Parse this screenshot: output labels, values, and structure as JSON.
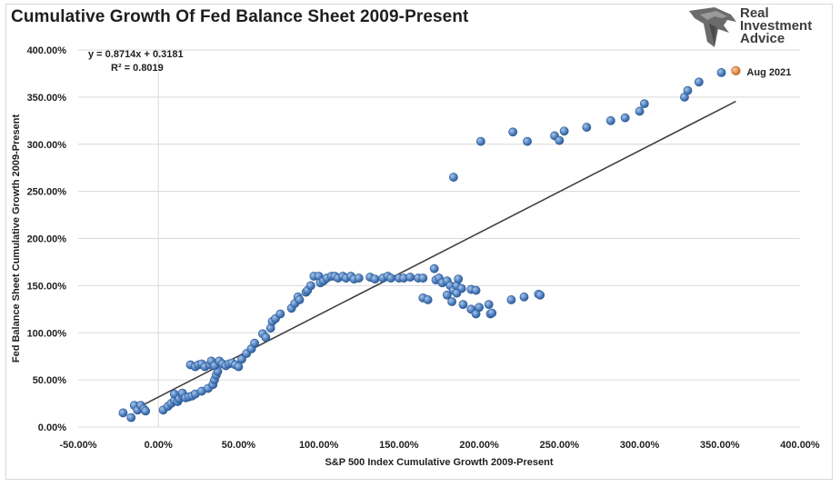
{
  "title": "Cumulative Growth Of Fed Balance Sheet 2009-Present",
  "logo": {
    "line1": "Real",
    "line2": "Investment",
    "line3": "Advice"
  },
  "chart_data": {
    "type": "scatter",
    "xlabel": "S&P 500 Index Cumulative Growth 2009-Present",
    "ylabel": "Fed Balance Sheet Cumulative Growth 2009-Present",
    "xlim": [
      -0.5,
      4.0
    ],
    "ylim": [
      0,
      4.0
    ],
    "x_ticks": [
      -0.5,
      0,
      0.5,
      1.0,
      1.5,
      2.0,
      2.5,
      3.0,
      3.5,
      4.0
    ],
    "x_tick_labels": [
      "-50.00%",
      "0.00%",
      "50.00%",
      "100.00%",
      "150.00%",
      "200.00%",
      "250.00%",
      "300.00%",
      "350.00%",
      "400.00%"
    ],
    "y_ticks": [
      0,
      0.5,
      1.0,
      1.5,
      2.0,
      2.5,
      3.0,
      3.5,
      4.0
    ],
    "y_tick_labels": [
      "0.00%",
      "50.00%",
      "100.00%",
      "150.00%",
      "200.00%",
      "250.00%",
      "300.00%",
      "350.00%",
      "400.00%"
    ],
    "grid": "horizontal",
    "colors": {
      "points": "#5b8ac7",
      "highlight": "#ed9a5b",
      "trendline": "#404040",
      "grid": "#d9d9d9"
    },
    "trendline": {
      "slope": 0.8714,
      "intercept": 0.3181,
      "x_range": [
        -0.14,
        3.6
      ],
      "equation_label": "y = 0.8714x + 0.3181",
      "r2_label": "R² = 0.8019"
    },
    "highlight": {
      "x": 3.6,
      "y": 3.78,
      "label": "Aug 2021"
    },
    "points": [
      [
        -0.22,
        0.15
      ],
      [
        -0.17,
        0.1
      ],
      [
        -0.15,
        0.23
      ],
      [
        -0.13,
        0.18
      ],
      [
        -0.11,
        0.23
      ],
      [
        -0.09,
        0.19
      ],
      [
        -0.08,
        0.17
      ],
      [
        0.03,
        0.18
      ],
      [
        0.06,
        0.22
      ],
      [
        0.08,
        0.25
      ],
      [
        0.1,
        0.28
      ],
      [
        0.1,
        0.35
      ],
      [
        0.12,
        0.27
      ],
      [
        0.13,
        0.3
      ],
      [
        0.15,
        0.33
      ],
      [
        0.15,
        0.36
      ],
      [
        0.17,
        0.31
      ],
      [
        0.19,
        0.32
      ],
      [
        0.21,
        0.33
      ],
      [
        0.23,
        0.35
      ],
      [
        0.27,
        0.38
      ],
      [
        0.31,
        0.41
      ],
      [
        0.34,
        0.45
      ],
      [
        0.35,
        0.5
      ],
      [
        0.36,
        0.55
      ],
      [
        0.37,
        0.59
      ],
      [
        0.2,
        0.66
      ],
      [
        0.23,
        0.64
      ],
      [
        0.25,
        0.66
      ],
      [
        0.27,
        0.67
      ],
      [
        0.29,
        0.64
      ],
      [
        0.32,
        0.66
      ],
      [
        0.33,
        0.7
      ],
      [
        0.35,
        0.65
      ],
      [
        0.38,
        0.7
      ],
      [
        0.4,
        0.67
      ],
      [
        0.42,
        0.65
      ],
      [
        0.44,
        0.67
      ],
      [
        0.46,
        0.68
      ],
      [
        0.48,
        0.66
      ],
      [
        0.5,
        0.64
      ],
      [
        0.52,
        0.72
      ],
      [
        0.55,
        0.78
      ],
      [
        0.58,
        0.83
      ],
      [
        0.6,
        0.89
      ],
      [
        0.65,
        0.99
      ],
      [
        0.67,
        0.95
      ],
      [
        0.7,
        1.05
      ],
      [
        0.71,
        1.12
      ],
      [
        0.73,
        1.15
      ],
      [
        0.76,
        1.2
      ],
      [
        0.83,
        1.26
      ],
      [
        0.85,
        1.31
      ],
      [
        0.87,
        1.38
      ],
      [
        0.88,
        1.35
      ],
      [
        0.92,
        1.43
      ],
      [
        0.93,
        1.45
      ],
      [
        0.95,
        1.5
      ],
      [
        0.97,
        1.6
      ],
      [
        1.0,
        1.6
      ],
      [
        1.01,
        1.53
      ],
      [
        1.03,
        1.55
      ],
      [
        1.05,
        1.58
      ],
      [
        1.08,
        1.6
      ],
      [
        1.1,
        1.6
      ],
      [
        1.12,
        1.58
      ],
      [
        1.15,
        1.6
      ],
      [
        1.17,
        1.58
      ],
      [
        1.2,
        1.6
      ],
      [
        1.22,
        1.57
      ],
      [
        1.25,
        1.58
      ],
      [
        1.32,
        1.59
      ],
      [
        1.35,
        1.57
      ],
      [
        1.4,
        1.58
      ],
      [
        1.43,
        1.6
      ],
      [
        1.45,
        1.58
      ],
      [
        1.5,
        1.58
      ],
      [
        1.53,
        1.58
      ],
      [
        1.57,
        1.59
      ],
      [
        1.62,
        1.58
      ],
      [
        1.65,
        1.58
      ],
      [
        1.72,
        1.68
      ],
      [
        1.73,
        1.56
      ],
      [
        1.75,
        1.58
      ],
      [
        1.77,
        1.53
      ],
      [
        1.8,
        1.55
      ],
      [
        1.82,
        1.5
      ],
      [
        1.84,
        1.45
      ],
      [
        1.86,
        1.5
      ],
      [
        1.87,
        1.57
      ],
      [
        1.89,
        1.47
      ],
      [
        1.95,
        1.46
      ],
      [
        1.98,
        1.45
      ],
      [
        1.65,
        1.37
      ],
      [
        1.68,
        1.35
      ],
      [
        1.8,
        1.4
      ],
      [
        1.83,
        1.33
      ],
      [
        1.86,
        1.42
      ],
      [
        1.9,
        1.3
      ],
      [
        1.95,
        1.25
      ],
      [
        1.98,
        1.2
      ],
      [
        2.0,
        1.27
      ],
      [
        2.06,
        1.3
      ],
      [
        2.07,
        1.2
      ],
      [
        2.08,
        1.21
      ],
      [
        2.2,
        1.35
      ],
      [
        2.28,
        1.38
      ],
      [
        2.37,
        1.41
      ],
      [
        2.38,
        1.4
      ],
      [
        1.84,
        2.65
      ],
      [
        2.01,
        3.03
      ],
      [
        2.21,
        3.13
      ],
      [
        2.3,
        3.03
      ],
      [
        2.47,
        3.09
      ],
      [
        2.5,
        3.04
      ],
      [
        2.53,
        3.14
      ],
      [
        2.67,
        3.18
      ],
      [
        2.82,
        3.25
      ],
      [
        2.91,
        3.28
      ],
      [
        3.0,
        3.35
      ],
      [
        3.03,
        3.43
      ],
      [
        3.28,
        3.5
      ],
      [
        3.3,
        3.57
      ],
      [
        3.37,
        3.66
      ],
      [
        3.51,
        3.76
      ]
    ]
  }
}
